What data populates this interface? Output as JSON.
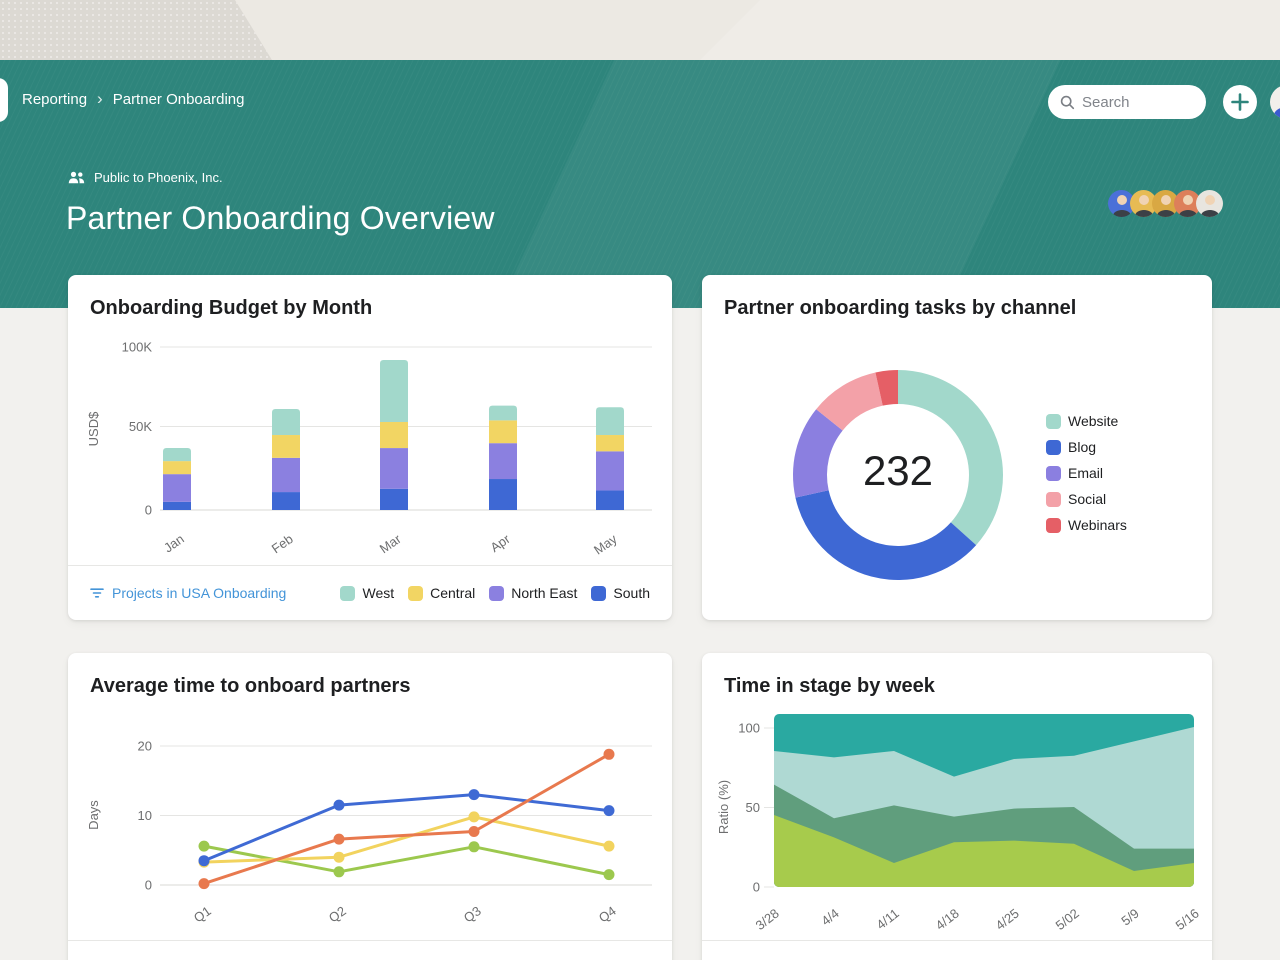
{
  "header": {
    "breadcrumb": [
      "Reporting",
      "Partner Onboarding"
    ],
    "search_placeholder": "Search",
    "team_label": "Public to Phoenix, Inc.",
    "title": "Partner Onboarding Overview",
    "theme_color": "#2e857c",
    "avatar_colors": [
      "#4b70d8",
      "#e7bb54",
      "#d9a843",
      "#dd7f5a",
      "#e8e5df"
    ]
  },
  "chart_data": [
    {
      "id": "budget",
      "type": "bar",
      "stacked": true,
      "title": "Onboarding Budget by Month",
      "categories": [
        "Jan",
        "Feb",
        "Mar",
        "Apr",
        "May"
      ],
      "series": [
        {
          "name": "South",
          "color": "#3e68d4",
          "values": [
            5,
            11,
            13,
            19,
            12
          ]
        },
        {
          "name": "North East",
          "color": "#8b80e0",
          "values": [
            17,
            21,
            25,
            22,
            24
          ]
        },
        {
          "name": "Central",
          "color": "#f2d563",
          "values": [
            8,
            14,
            16,
            14,
            10
          ]
        },
        {
          "name": "West",
          "color": "#a2d8cb",
          "values": [
            8,
            16,
            38,
            9,
            17
          ]
        }
      ],
      "legend_order": [
        "West",
        "Central",
        "North East",
        "South"
      ],
      "ylabel": "USD$",
      "yticks": [
        "0",
        "50K",
        "100K"
      ],
      "ylim_k": [
        0,
        100
      ],
      "footer_link": "Projects in USA Onboarding"
    },
    {
      "id": "channels",
      "type": "pie",
      "title": "Partner onboarding tasks by channel",
      "total_label": "232",
      "slices": [
        {
          "name": "Website",
          "color": "#a2d8cb",
          "value": 85
        },
        {
          "name": "Blog",
          "color": "#3e68d4",
          "value": 81
        },
        {
          "name": "Email",
          "color": "#8b7fe0",
          "value": 33
        },
        {
          "name": "Social",
          "color": "#f3a1a8",
          "value": 25
        },
        {
          "name": "Webinars",
          "color": "#e55f66",
          "value": 8
        }
      ],
      "legend_position": "right"
    },
    {
      "id": "onboard_time",
      "type": "line",
      "title": "Average time to onboard partners",
      "categories": [
        "Q1",
        "Q2",
        "Q3",
        "Q4"
      ],
      "series": [
        {
          "name": "",
          "color": "#9cc84e",
          "values": [
            5.6,
            1.9,
            5.5,
            1.5
          ]
        },
        {
          "name": "",
          "color": "#f2d35e",
          "values": [
            3.3,
            4.0,
            9.8,
            5.6
          ]
        },
        {
          "name": "",
          "color": "#3f6ad4",
          "values": [
            3.5,
            11.5,
            13.0,
            10.7
          ]
        },
        {
          "name": "",
          "color": "#e8794e",
          "values": [
            0.2,
            6.6,
            7.7,
            18.8
          ]
        }
      ],
      "ylabel": "Days",
      "yticks": [
        "0",
        "10",
        "20"
      ],
      "ylim": [
        0,
        20
      ]
    },
    {
      "id": "time_in_stage",
      "type": "area",
      "stacked_percent": true,
      "title": "Time in stage by week",
      "categories": [
        "3/28",
        "4/4",
        "4/11",
        "4/18",
        "4/25",
        "5/02",
        "5/9",
        "5/16"
      ],
      "series": [
        {
          "name": "",
          "color": "#a7cb4c",
          "cumulative_pct": [
            45,
            31,
            15,
            28,
            29,
            27,
            10,
            15
          ]
        },
        {
          "name": "",
          "color": "#609e7d",
          "cumulative_pct": [
            64,
            43,
            51,
            44,
            49,
            50,
            24,
            24
          ]
        },
        {
          "name": "",
          "color": "#afd9d3",
          "cumulative_pct": [
            85,
            81,
            85,
            69,
            80,
            82,
            91,
            100
          ]
        },
        {
          "name": "",
          "color": "#2aa9a1",
          "cumulative_pct": [
            109,
            109,
            109,
            109,
            109,
            109,
            109,
            109
          ]
        }
      ],
      "ylabel": "Ratio (%)",
      "yticks": [
        "0",
        "50",
        "100"
      ],
      "ylim": [
        0,
        100
      ]
    }
  ]
}
